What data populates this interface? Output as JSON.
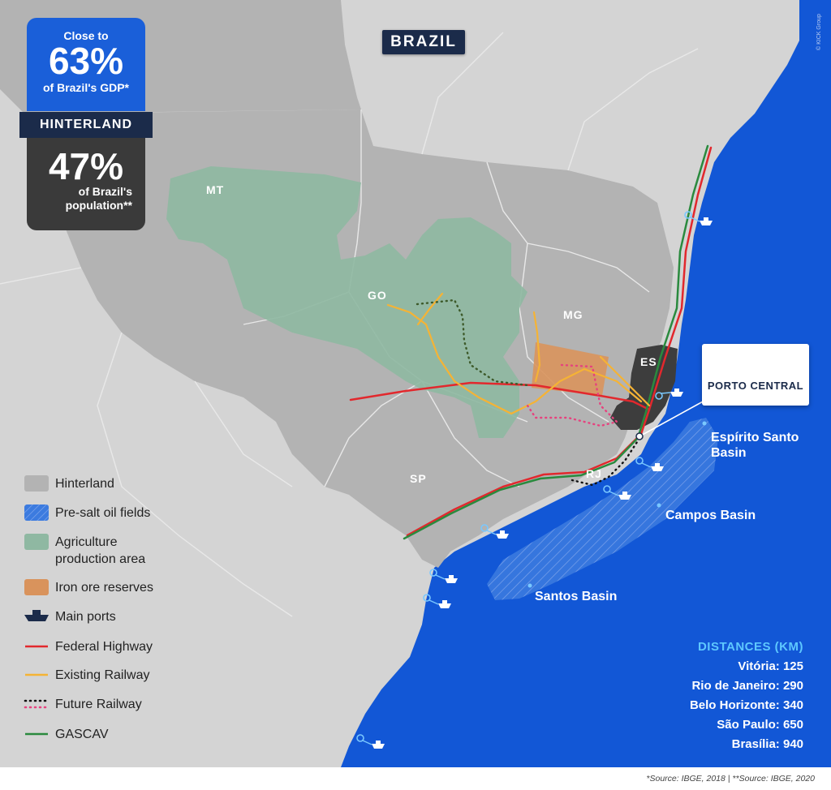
{
  "map_title": "BRAZIL",
  "stats": {
    "gdp_pre": "Close to",
    "gdp_value": "63%",
    "gdp_post": "of Brazil's GDP*",
    "region_label": "HINTERLAND",
    "pop_value": "47%",
    "pop_post": "of Brazil's population**"
  },
  "regions": {
    "mt": "MT",
    "go": "GO",
    "mg": "MG",
    "es": "ES",
    "sp": "SP",
    "rj": "RJ"
  },
  "legend": [
    {
      "label": "Hinterland",
      "icon": "hinterland-swatch",
      "color": "#b3b3b3"
    },
    {
      "label": "Pre-salt oil fields",
      "icon": "presalt-swatch",
      "color": "#3c7bdf"
    },
    {
      "label": "Agriculture production area",
      "icon": "agriculture-swatch",
      "color": "#8fb8a2"
    },
    {
      "label": "Iron ore reserves",
      "icon": "iron-swatch",
      "color": "#d9935c"
    },
    {
      "label": "Main ports",
      "icon": "ship-icon",
      "color": "#1b2b4a"
    },
    {
      "label": "Federal Highway",
      "icon": "highway-line",
      "color": "#e2282d"
    },
    {
      "label": "Existing Railway",
      "icon": "railway-line",
      "color": "#f5b335"
    },
    {
      "label": "Future Railway",
      "icon": "future-railway-line",
      "color": "#e6427e"
    },
    {
      "label": "GASCAV",
      "icon": "gascav-line",
      "color": "#2a8a3e"
    }
  ],
  "porto_central": {
    "name": "PORTO CENTRAL",
    "icon": "porto-central-logo"
  },
  "basins": {
    "espirito_santo": "Espírito Santo Basin",
    "campos": "Campos Basin",
    "santos": "Santos Basin"
  },
  "distances": {
    "heading": "DISTANCES (KM)",
    "rows": [
      "Vitória:  125",
      "Rio de Janeiro: 290",
      "Belo Horizonte: 340",
      "São Paulo: 650",
      "Brasília: 940"
    ]
  },
  "source": "*Source: IBGE, 2018 | **Source: IBGE, 2020",
  "copyright": "© KICK Group",
  "colors": {
    "ocean": "#1257d6",
    "hinterland": "#b3b3b3",
    "other_land": "#d4d4d4",
    "agriculture": "#8fb8a2",
    "iron": "#d9935c",
    "highway": "#e2282d",
    "railway": "#f5b335",
    "future_railway": "#e6427e",
    "gascav": "#2a8a3e",
    "es_state": "#3d3d3d"
  }
}
